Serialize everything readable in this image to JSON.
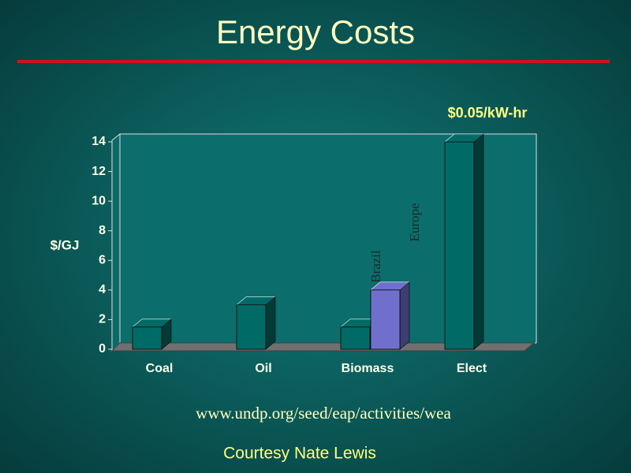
{
  "chart_data": {
    "type": "bar3d",
    "title": "Energy Costs",
    "ylabel": "$/GJ",
    "categories": [
      "Coal",
      "Oil",
      "Biomass",
      "Elect"
    ],
    "series": [
      {
        "color": "#006b66",
        "values": [
          1.5,
          3,
          1.5,
          14
        ]
      },
      {
        "color": "#7070cc",
        "values": [
          null,
          null,
          4,
          null
        ]
      }
    ],
    "ylim": [
      0,
      14
    ],
    "yticks": [
      0,
      2,
      4,
      6,
      8,
      10,
      12,
      14
    ],
    "annotations": [
      "Brazil",
      "Europe",
      "$0.05/kW-hr"
    ]
  },
  "footer": {
    "source": "www.undp.org/seed/eap/activities/wea",
    "credit": "Courtesy Nate Lewis"
  }
}
